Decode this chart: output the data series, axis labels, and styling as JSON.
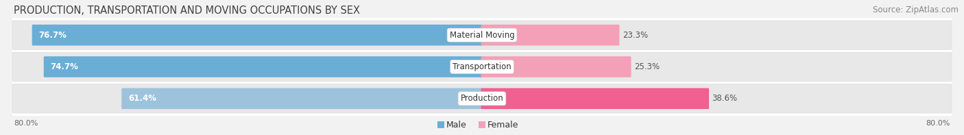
{
  "title": "PRODUCTION, TRANSPORTATION AND MOVING OCCUPATIONS BY SEX",
  "source": "Source: ZipAtlas.com",
  "categories": [
    "Material Moving",
    "Transportation",
    "Production"
  ],
  "male_values": [
    76.7,
    74.7,
    61.4
  ],
  "female_values": [
    23.3,
    25.3,
    38.6
  ],
  "male_colors": [
    "#6aaed6",
    "#6aaed6",
    "#9dc3dc"
  ],
  "female_colors": [
    "#f4a0b8",
    "#f4a0b8",
    "#f06090"
  ],
  "row_bg_color": "#ffffff",
  "outer_bg_color": "#f2f2f2",
  "bar_bg_color": "#e8e8e8",
  "axis_range": 80.0,
  "axis_label_left": "80.0%",
  "axis_label_right": "80.0%",
  "title_fontsize": 10.5,
  "source_fontsize": 8.5,
  "value_fontsize": 8.5,
  "category_fontsize": 8.5,
  "legend_fontsize": 9
}
